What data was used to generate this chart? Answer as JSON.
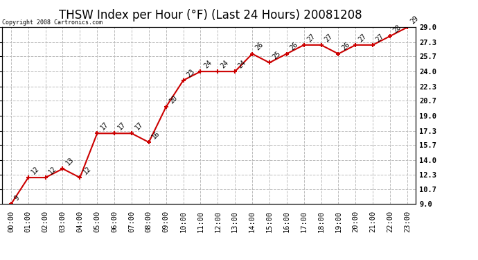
{
  "title": "THSW Index per Hour (°F) (Last 24 Hours) 20081208",
  "copyright": "Copyright 2008 Cartronics.com",
  "hours": [
    "00:00",
    "01:00",
    "02:00",
    "03:00",
    "04:00",
    "05:00",
    "06:00",
    "07:00",
    "08:00",
    "09:00",
    "10:00",
    "11:00",
    "12:00",
    "13:00",
    "14:00",
    "15:00",
    "16:00",
    "17:00",
    "18:00",
    "19:00",
    "20:00",
    "21:00",
    "22:00",
    "23:00"
  ],
  "values": [
    9,
    12,
    12,
    13,
    12,
    17,
    17,
    17,
    16,
    20,
    23,
    24,
    24,
    24,
    26,
    25,
    26,
    27,
    27,
    26,
    27,
    27,
    28,
    29
  ],
  "ylim": [
    9.0,
    29.0
  ],
  "yticks": [
    9.0,
    10.7,
    12.3,
    14.0,
    15.7,
    17.3,
    19.0,
    20.7,
    22.3,
    24.0,
    25.7,
    27.3,
    29.0
  ],
  "ytick_labels": [
    "9.0",
    "10.7",
    "12.3",
    "14.0",
    "15.7",
    "17.3",
    "19.0",
    "20.7",
    "22.3",
    "24.0",
    "25.7",
    "27.3",
    "29.0"
  ],
  "line_color": "#cc0000",
  "marker_color": "#cc0000",
  "bg_color": "#ffffff",
  "grid_color": "#bbbbbb",
  "title_fontsize": 12,
  "label_fontsize": 7.5,
  "annotation_fontsize": 7,
  "copyright_fontsize": 6
}
